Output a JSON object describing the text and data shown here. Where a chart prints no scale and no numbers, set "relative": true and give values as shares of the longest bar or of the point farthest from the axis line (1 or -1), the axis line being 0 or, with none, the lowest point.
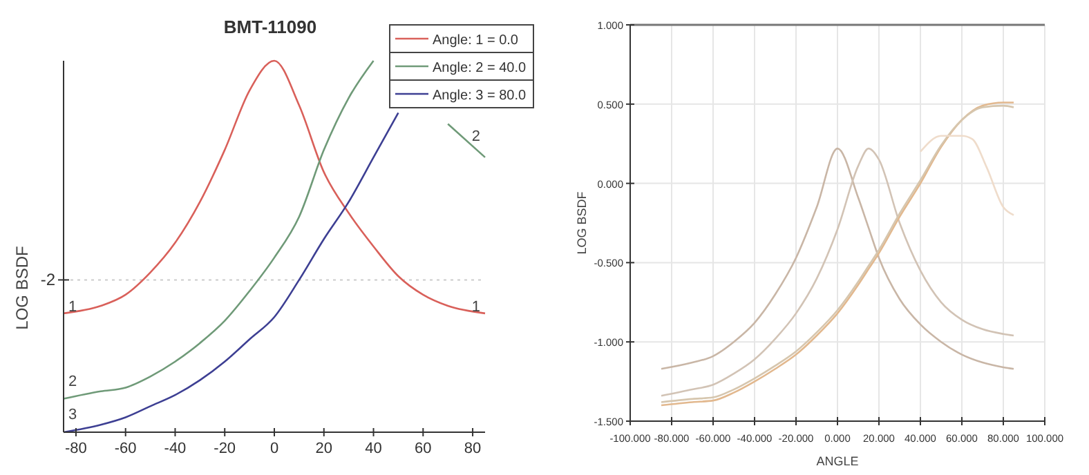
{
  "chart_data": [
    {
      "type": "line",
      "title": "BMT-11090",
      "ylabel": "LOG BSDF",
      "relative": true,
      "legend": "top right",
      "grid": false,
      "x": [
        -85,
        -70,
        -60,
        -50,
        -40,
        -30,
        -20,
        -10,
        0,
        10,
        20,
        30,
        40,
        50,
        60,
        70,
        85
      ],
      "xlim": [
        -85,
        85
      ],
      "xticks": [
        -80,
        -60,
        -40,
        -20,
        0,
        20,
        40,
        60,
        80
      ],
      "series": [
        {
          "name": "Angle: 1 = 0.0",
          "color": "#d9605a",
          "values": [
            0.32,
            0.34,
            0.37,
            0.43,
            0.51,
            0.62,
            0.76,
            0.92,
            1,
            0.88,
            0.7,
            0.59,
            0.5,
            0.42,
            0.37,
            0.34,
            0.32
          ]
        },
        {
          "name": "Angle: 2 = 40.0",
          "color": "#6f9a78",
          "values": [
            0.09,
            0.11,
            0.12,
            0.15,
            0.19,
            0.24,
            0.3,
            0.38,
            0.47,
            0.58,
            0.76,
            0.9,
            1,
            null,
            null,
            0.83,
            0.74
          ]
        },
        {
          "name": "Angle: 3 = 80.0",
          "color": "#3d3f93",
          "values": [
            0,
            0.02,
            0.04,
            0.07,
            0.1,
            0.14,
            0.19,
            0.25,
            0.31,
            0.41,
            0.52,
            0.62,
            0.74,
            0.86,
            null,
            null,
            null
          ]
        }
      ],
      "ref_lines": [
        {
          "axis": "y",
          "value": 0.41
        }
      ],
      "annotations": [
        "-2",
        "1",
        "1",
        "2",
        "2",
        "3"
      ]
    },
    {
      "type": "line",
      "xlabel": "ANGLE",
      "ylabel": "LOG BSDF",
      "grid": true,
      "x": [
        -85,
        -70,
        -60,
        -50,
        -40,
        -30,
        -20,
        -10,
        0,
        10,
        15,
        20,
        30,
        40,
        50,
        60,
        70,
        80,
        85
      ],
      "xlim": [
        -100,
        100
      ],
      "ylim": [
        -1.5,
        1
      ],
      "xticks": [
        {
          "value": -100,
          "label": "-100.000"
        },
        {
          "value": -80,
          "label": "-80.000"
        },
        {
          "value": -60,
          "label": "-60.000"
        },
        {
          "value": -40,
          "label": "-40.000"
        },
        {
          "value": -20,
          "label": "-20.000"
        },
        {
          "value": 0,
          "label": "0.000"
        },
        {
          "value": 20,
          "label": "20.000"
        },
        {
          "value": 40,
          "label": "40.000"
        },
        {
          "value": 60,
          "label": "60.000"
        },
        {
          "value": 80,
          "label": "80.000"
        },
        {
          "value": 100,
          "label": "100.000"
        }
      ],
      "yticks": [
        {
          "value": -1.5,
          "label": "-1.500"
        },
        {
          "value": -1,
          "label": "-1.000"
        },
        {
          "value": -0.5,
          "label": "-0.500"
        },
        {
          "value": 0,
          "label": "0.000"
        },
        {
          "value": 0.5,
          "label": "0.500"
        },
        {
          "value": 1,
          "label": "1.000"
        }
      ],
      "series": [
        {
          "color": "#c9b6a6",
          "values": [
            -1.17,
            -1.13,
            -1.09,
            -1.0,
            -0.88,
            -0.7,
            -0.47,
            -0.15,
            0.22,
            -0.09,
            -0.28,
            -0.47,
            -0.73,
            -0.89,
            -1.0,
            -1.08,
            -1.13,
            -1.16,
            -1.17
          ]
        },
        {
          "color": "#d2c3b5",
          "values": [
            -1.34,
            -1.3,
            -1.27,
            -1.2,
            -1.11,
            -0.98,
            -0.82,
            -0.6,
            -0.29,
            0.11,
            0.22,
            0.15,
            -0.25,
            -0.55,
            -0.75,
            -0.86,
            -0.92,
            -0.95,
            -0.96
          ]
        },
        {
          "color": "#e2b88e",
          "values": [
            -1.4,
            -1.38,
            -1.37,
            -1.32,
            -1.25,
            -1.17,
            -1.08,
            -0.96,
            -0.82,
            -0.64,
            -0.54,
            -0.44,
            -0.21,
            0.0,
            0.23,
            0.4,
            0.49,
            0.51,
            0.51
          ]
        },
        {
          "color": "#d6c6ae",
          "values": [
            -1.38,
            -1.36,
            -1.35,
            -1.3,
            -1.23,
            -1.15,
            -1.06,
            -0.94,
            -0.8,
            -0.62,
            -0.52,
            -0.42,
            -0.19,
            0.02,
            0.24,
            0.4,
            0.48,
            0.49,
            0.48
          ]
        },
        {
          "color": "#efdccb",
          "x": [
            40,
            50,
            60,
            65,
            72,
            80,
            85
          ],
          "values": [
            0.2,
            0.3,
            0.3,
            0.28,
            0.1,
            -0.15,
            -0.2
          ]
        }
      ]
    }
  ]
}
